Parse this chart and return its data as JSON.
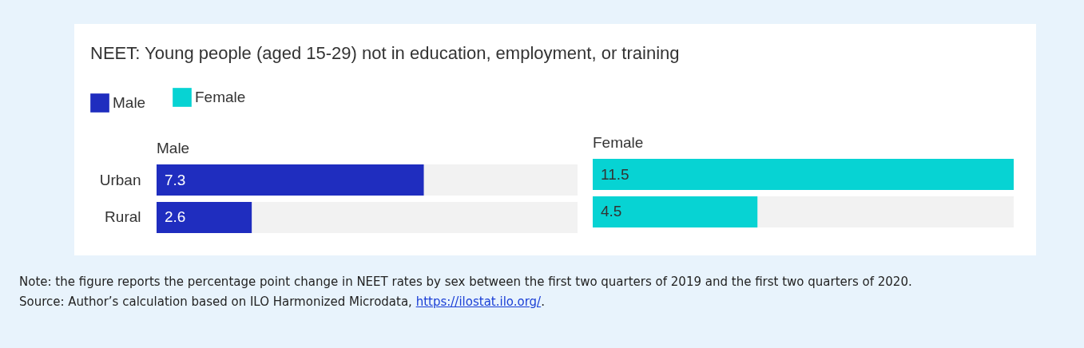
{
  "chart_data": [
    {
      "type": "bar",
      "orientation": "horizontal",
      "title": "NEET: Young people (aged 15-29) not in education, employment, or training",
      "categories": [
        "Urban",
        "Rural"
      ],
      "series": [
        {
          "name": "Male",
          "color": "#1f2dbf",
          "values": [
            7.3,
            2.6
          ]
        }
      ],
      "xlim": [
        0,
        11.5
      ],
      "data_labels": true,
      "legend": "top left",
      "tick_labels": "y",
      "annotations": [
        "Note: the figure reports the percentage point change in NEET rates by sex between the first two quarters of 2019 and the first two quarters of 2020.",
        "Source: Author’s calculation based on ILO Harmonized Microdata, https://ilostat.ilo.org/."
      ]
    },
    {
      "type": "bar",
      "orientation": "horizontal",
      "categories": [
        null,
        null
      ],
      "series": [
        {
          "name": "Female",
          "color": "#07d3d3",
          "values": [
            11.5,
            4.5
          ]
        }
      ],
      "xlim": [
        0,
        11.5
      ],
      "data_labels": true,
      "legend": "top left",
      "tick_labels": false
    }
  ]
}
